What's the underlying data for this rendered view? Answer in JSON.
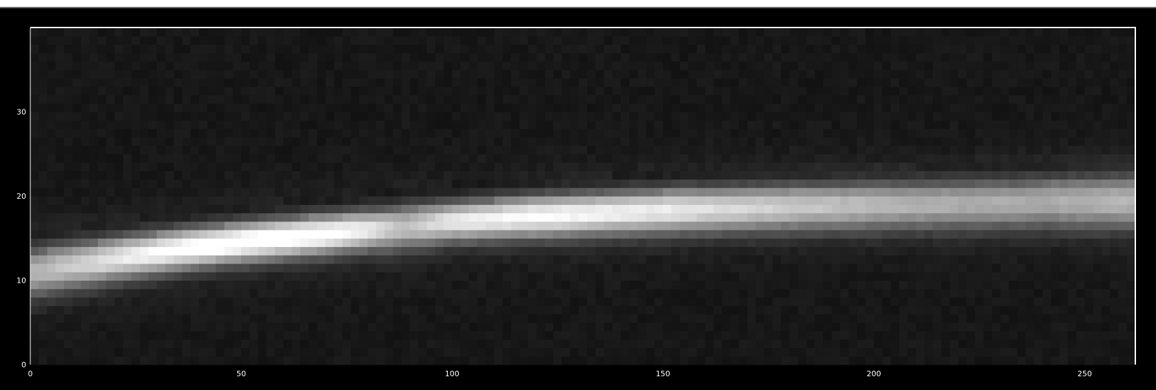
{
  "chart_data": {
    "type": "heatmap",
    "title": "",
    "xlabel": "",
    "ylabel": "",
    "colormap": "grayscale",
    "background_color": "#000000",
    "plot_background_color": "#111111",
    "frame_color": "#ffffff",
    "xlim": [
      0,
      262
    ],
    "ylim": [
      0,
      40
    ],
    "x_ticks": [
      0,
      50,
      100,
      150,
      200,
      250
    ],
    "y_ticks": [
      0,
      10,
      20,
      30
    ],
    "grid": false,
    "band": {
      "description_points": [
        {
          "x": 0,
          "y_center": 11.0,
          "intensity": 0.55,
          "width": 2.0
        },
        {
          "x": 10,
          "y_center": 11.8,
          "intensity": 0.65,
          "width": 1.9
        },
        {
          "x": 25,
          "y_center": 13.0,
          "intensity": 0.82,
          "width": 1.7
        },
        {
          "x": 40,
          "y_center": 14.0,
          "intensity": 0.92,
          "width": 1.6
        },
        {
          "x": 55,
          "y_center": 14.8,
          "intensity": 0.95,
          "width": 1.6
        },
        {
          "x": 70,
          "y_center": 15.5,
          "intensity": 0.9,
          "width": 1.6
        },
        {
          "x": 80,
          "y_center": 16.0,
          "intensity": 0.8,
          "width": 1.6
        },
        {
          "x": 88,
          "y_center": 16.3,
          "intensity": 0.6,
          "width": 1.8
        },
        {
          "x": 100,
          "y_center": 17.0,
          "intensity": 0.78,
          "width": 1.6
        },
        {
          "x": 120,
          "y_center": 17.6,
          "intensity": 0.85,
          "width": 1.7
        },
        {
          "x": 150,
          "y_center": 18.3,
          "intensity": 0.78,
          "width": 1.8
        },
        {
          "x": 180,
          "y_center": 18.7,
          "intensity": 0.65,
          "width": 1.9
        },
        {
          "x": 210,
          "y_center": 19.0,
          "intensity": 0.55,
          "width": 2.0
        },
        {
          "x": 240,
          "y_center": 19.3,
          "intensity": 0.52,
          "width": 2.1
        },
        {
          "x": 262,
          "y_center": 19.4,
          "intensity": 0.58,
          "width": 2.2
        }
      ]
    }
  }
}
